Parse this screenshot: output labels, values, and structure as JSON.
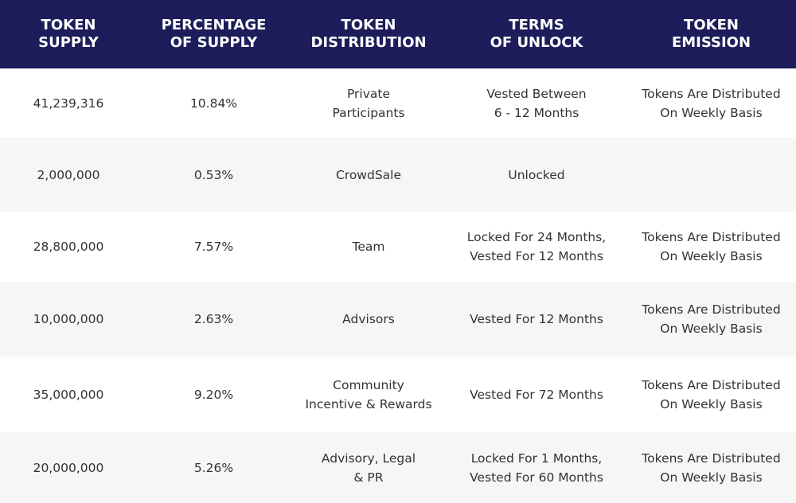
{
  "table": {
    "header": [
      [
        "TOKEN",
        "SUPPLY"
      ],
      [
        "PERCENTAGE",
        "OF SUPPLY"
      ],
      [
        "TOKEN",
        "DISTRIBUTION"
      ],
      [
        "TERMS",
        "OF UNLOCK"
      ],
      [
        "TOKEN",
        "EMISSION"
      ]
    ],
    "rows": [
      [
        [
          "41,239,316"
        ],
        [
          "10.84%"
        ],
        [
          "Private",
          "Participants"
        ],
        [
          "Vested Between",
          "6 - 12 Months"
        ],
        [
          "Tokens Are Distributed",
          "On Weekly Basis"
        ]
      ],
      [
        [
          "2,000,000"
        ],
        [
          "0.53%"
        ],
        [
          "CrowdSale"
        ],
        [
          "Unlocked"
        ],
        []
      ],
      [
        [
          "28,800,000"
        ],
        [
          "7.57%"
        ],
        [
          "Team"
        ],
        [
          "Locked For 24 Months,",
          "Vested For 12 Months"
        ],
        [
          "Tokens Are Distributed",
          "On Weekly Basis"
        ]
      ],
      [
        [
          "10,000,000"
        ],
        [
          "2.63%"
        ],
        [
          "Advisors"
        ],
        [
          "Vested For 12 Months"
        ],
        [
          "Tokens Are Distributed",
          "On Weekly Basis"
        ]
      ],
      [
        [
          "35,000,000"
        ],
        [
          "9.20%"
        ],
        [
          "Community",
          "Incentive & Rewards"
        ],
        [
          "Vested For 72 Months"
        ],
        [
          "Tokens Are Distributed",
          "On Weekly Basis"
        ]
      ],
      [
        [
          "20,000,000"
        ],
        [
          "5.26%"
        ],
        [
          "Advisory, Legal",
          "& PR"
        ],
        [
          "Locked For 1 Months,",
          "Vested For 60 Months"
        ],
        [
          "Tokens Are Distributed",
          "On Weekly Basis"
        ]
      ]
    ]
  }
}
